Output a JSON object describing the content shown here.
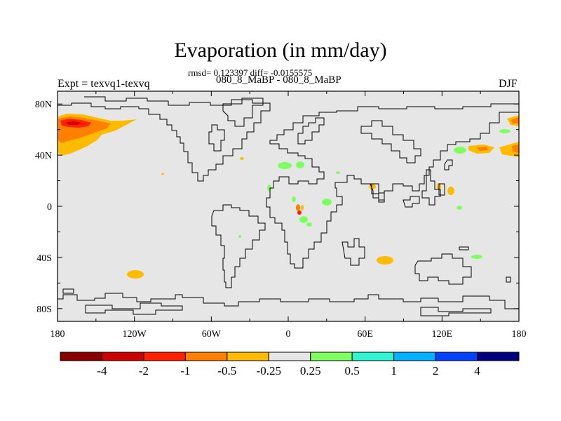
{
  "title": "Evaporation (in mm/day)",
  "stats": "rmsd= 0.123397 diff= -0.0155575",
  "subtitle": "080_8_MaBP - 080_8_MaBP",
  "expt": "Expt = texvq1-texvq",
  "season": "DJF",
  "map": {
    "background_color": "#e6e6e6",
    "lat_ticks": [
      "80N",
      "40N",
      "0",
      "40S",
      "80S"
    ],
    "lon_ticks": [
      "180",
      "120W",
      "60W",
      "0",
      "60E",
      "120E",
      "180"
    ]
  },
  "colorbar": {
    "colors": [
      "#8b0000",
      "#cd0000",
      "#ff2000",
      "#ff7f00",
      "#ffbb00",
      "#e6e6e6",
      "#7fff5f",
      "#2ff5d0",
      "#00b2ff",
      "#0040ff",
      "#000080"
    ],
    "labels": [
      "-4",
      "-2",
      "-1",
      "-0.5",
      "-0.25",
      "0.25",
      "0.5",
      "1",
      "2",
      "4"
    ]
  }
}
